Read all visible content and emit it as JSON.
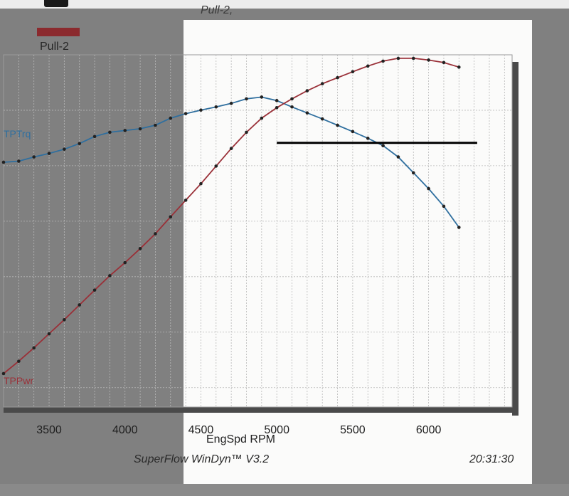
{
  "chart_data": {
    "type": "line",
    "title": "Pull-2,",
    "xlabel": "EngSpd RPM",
    "ylabel": "",
    "xlim": [
      3200,
      6550
    ],
    "x_ticks": [
      "3500",
      "4000",
      "4500",
      "5000",
      "5500",
      "6000"
    ],
    "legend": {
      "placement": "top-left",
      "label": "Pull-2",
      "color": "#8b2a2e"
    },
    "grid": true,
    "series": [
      {
        "name": "TPTrq",
        "color": "#2f6f9f",
        "x": [
          3200,
          3300,
          3400,
          3500,
          3600,
          3700,
          3800,
          3900,
          4000,
          4100,
          4200,
          4300,
          4400,
          4500,
          4600,
          4700,
          4800,
          4900,
          5000,
          5100,
          5200,
          5300,
          5400,
          5500,
          5600,
          5700,
          5800,
          5900,
          6000,
          6100,
          6200
        ],
        "y": [
          0.695,
          0.698,
          0.71,
          0.72,
          0.732,
          0.748,
          0.768,
          0.78,
          0.785,
          0.79,
          0.8,
          0.82,
          0.833,
          0.843,
          0.852,
          0.862,
          0.875,
          0.88,
          0.87,
          0.852,
          0.835,
          0.818,
          0.8,
          0.782,
          0.763,
          0.742,
          0.71,
          0.665,
          0.62,
          0.57,
          0.51
        ]
      },
      {
        "name": "TPPwr",
        "color": "#9a3038",
        "x": [
          3200,
          3300,
          3400,
          3500,
          3600,
          3700,
          3800,
          3900,
          4000,
          4100,
          4200,
          4300,
          4400,
          4500,
          4600,
          4700,
          4800,
          4900,
          5000,
          5100,
          5200,
          5300,
          5400,
          5500,
          5600,
          5700,
          5800,
          5900,
          6000,
          6100,
          6200
        ],
        "y": [
          0.095,
          0.13,
          0.168,
          0.208,
          0.248,
          0.29,
          0.332,
          0.373,
          0.41,
          0.45,
          0.492,
          0.54,
          0.587,
          0.634,
          0.684,
          0.734,
          0.78,
          0.82,
          0.85,
          0.875,
          0.898,
          0.918,
          0.935,
          0.952,
          0.968,
          0.982,
          0.99,
          0.99,
          0.985,
          0.978,
          0.965
        ]
      }
    ],
    "series_labels": {
      "torque": "TPTrq",
      "power": "TPPwr"
    },
    "annotation": {
      "type": "horizontal-line",
      "x_start": 5000,
      "x_end": 6320,
      "y": 0.75,
      "color": "#000000"
    }
  },
  "footer": {
    "software": "SuperFlow WinDyn™ V3.2",
    "time": "20:31:30"
  }
}
